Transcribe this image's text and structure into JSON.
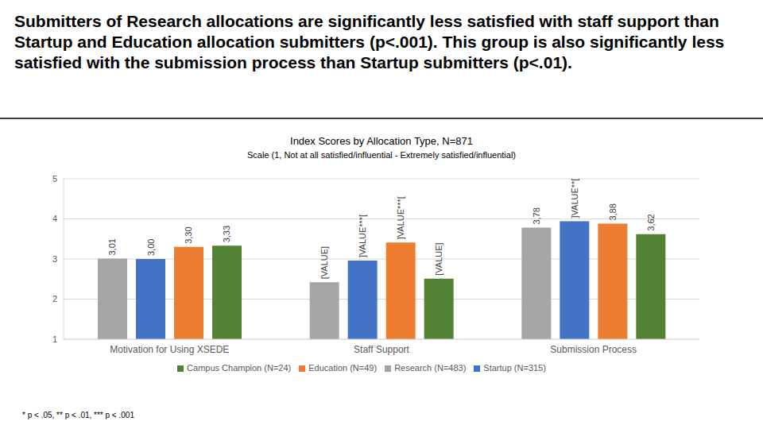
{
  "heading": "Submitters of Research allocations are significantly less satisfied with staff support than Startup and Education allocation submitters (p<.001). This group is also significantly less satisfied with the submission process than Startup submitters (p<.01).",
  "chart_data": {
    "type": "bar",
    "title": "Index Scores by Allocation Type, N=871",
    "subtitle": "Scale (1, Not at all satisfied/influential - Extremely satisfied/influential)",
    "annotations": [
      "* p < .05, ** p < .01, *** p < .001"
    ],
    "categories": [
      "Motivation for Using XSEDE",
      "Staff Support",
      "Submission Process"
    ],
    "series": [
      {
        "name": "Research (N=483)",
        "color": "#a5a5a5",
        "values": [
          3.01,
          2.42,
          3.78
        ],
        "value_labels": [
          "3,01",
          "[VALUE]",
          "3,78"
        ]
      },
      {
        "name": "Startup (N=315)",
        "color": "#4472c4",
        "values": [
          3.0,
          2.96,
          3.94
        ],
        "value_labels": [
          "3,00",
          "]VALUE***[",
          "]VALUE**["
        ]
      },
      {
        "name": "Education (N=49)",
        "color": "#ed7d31",
        "values": [
          3.3,
          3.41,
          3.88
        ],
        "value_labels": [
          "3,30",
          "]VALUE***[",
          "3,88"
        ]
      },
      {
        "name": "Campus Champion (N=24)",
        "color": "#548235",
        "values": [
          3.33,
          2.51,
          3.62
        ],
        "value_labels": [
          "3,33",
          "[VALUE]",
          "3,62"
        ]
      }
    ],
    "ylim": [
      1,
      5
    ],
    "yticks": [
      1,
      2,
      3,
      4,
      5
    ],
    "grid": true,
    "legend": "bottom",
    "data_labels": true
  }
}
